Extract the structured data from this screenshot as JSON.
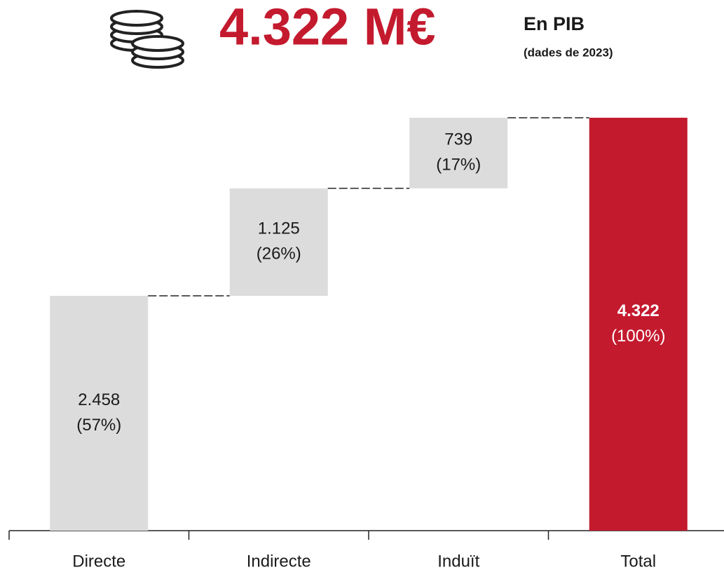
{
  "header": {
    "headline": "4.322 M€",
    "label": "En PIB",
    "note": "(dades de 2023)"
  },
  "chart_data": {
    "type": "waterfall",
    "categories": [
      "Directe",
      "Indirecte",
      "Induït",
      "Total"
    ],
    "values": [
      2458,
      1125,
      739,
      4322
    ],
    "value_labels": [
      "2.458",
      "1.125",
      "739",
      "4.322"
    ],
    "shares": [
      57,
      26,
      17,
      100
    ],
    "share_labels": [
      "(57%)",
      "(26%)",
      "(17%)",
      "(100%)"
    ],
    "measure": [
      "relative",
      "relative",
      "relative",
      "total"
    ],
    "colors": [
      "#dcdcdc",
      "#dcdcdc",
      "#dcdcdc",
      "#c41a2e"
    ],
    "ylim": [
      0,
      4500
    ]
  }
}
